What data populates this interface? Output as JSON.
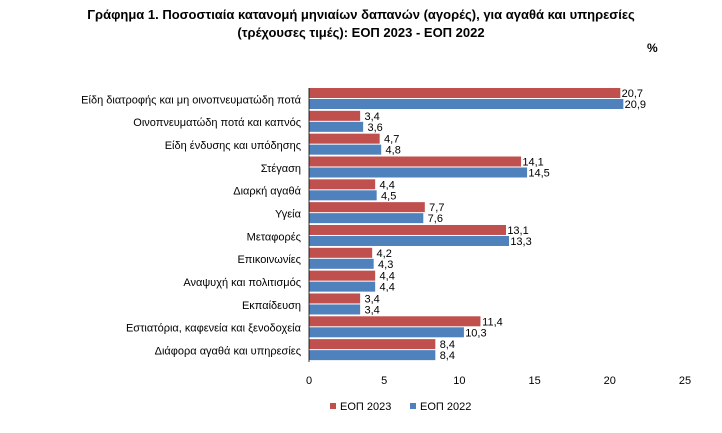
{
  "title_line1": "Γράφημα 1. Ποσοστιαία κατανομή μηνιαίων δαπανών (αγορές), για αγαθά και υπηρεσίες",
  "title_line2": "(τρέχουσες τιμές): ΕΟΠ 2023 - ΕΟΠ 2022",
  "unit": "%",
  "chart_data": {
    "type": "bar",
    "orientation": "horizontal",
    "categories": [
      "Είδη διατροφής και μη οινοπνευματώδη ποτά",
      "Οινοπνευματώδη ποτά και καπνός",
      "Είδη ένδυσης και υπόδησης",
      "Στέγαση",
      "Διαρκή αγαθά",
      "Υγεία",
      "Μεταφορές",
      "Επικοινωνίες",
      "Αναψυχή και πολιτισμός",
      "Εκπαίδευση",
      "Εστιατόρια, καφενεία  και ξενοδοχεία",
      "Διάφορα αγαθά και υπηρεσίες"
    ],
    "series": [
      {
        "name": "ΕΟΠ 2023",
        "color": "#c0504d",
        "values": [
          20.7,
          3.4,
          4.7,
          14.1,
          4.4,
          7.7,
          13.1,
          4.2,
          4.4,
          3.4,
          11.4,
          8.4
        ],
        "labels": [
          "20,7",
          "3,4",
          "4,7",
          "14,1",
          "4,4",
          "7,7",
          "13,1",
          "4,2",
          "4,4",
          "3,4",
          "11,4",
          "8,4"
        ]
      },
      {
        "name": "ΕΟΠ 2022",
        "color": "#4f81bd",
        "values": [
          20.9,
          3.6,
          4.8,
          14.5,
          4.5,
          7.6,
          13.3,
          4.3,
          4.4,
          3.4,
          10.3,
          8.4
        ],
        "labels": [
          "20,9",
          "3,6",
          "4,8",
          "14,5",
          "4,5",
          "7,6",
          "13,3",
          "4,3",
          "4,4",
          "3,4",
          "10,3",
          "8,4"
        ]
      }
    ],
    "xlim": [
      0,
      25
    ],
    "xticks": [
      "0",
      "5",
      "10",
      "15",
      "20",
      "25"
    ],
    "grid": false,
    "legend": "bottom"
  }
}
